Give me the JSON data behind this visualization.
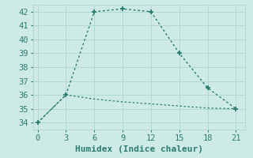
{
  "xlabel": "Humidex (Indice chaleur)",
  "line1_x": [
    0,
    3,
    6,
    9,
    12,
    15,
    18,
    21
  ],
  "line1_y": [
    34,
    36,
    42,
    42.2,
    42,
    39,
    36.5,
    35
  ],
  "line2_x": [
    0,
    3,
    6,
    9,
    12,
    15,
    18,
    21
  ],
  "line2_y": [
    34,
    36,
    35.7,
    35.5,
    35.35,
    35.2,
    35.05,
    35.0
  ],
  "line_color": "#2a7d6e",
  "bg_color": "#ceeae6",
  "grid_color": "#b0d8d2",
  "xlim": [
    -0.5,
    22
  ],
  "ylim": [
    33.5,
    42.5
  ],
  "xticks": [
    0,
    3,
    6,
    9,
    12,
    15,
    18,
    21
  ],
  "yticks": [
    34,
    35,
    36,
    37,
    38,
    39,
    40,
    41,
    42
  ],
  "xlabel_fontsize": 8,
  "tick_fontsize": 7.5
}
